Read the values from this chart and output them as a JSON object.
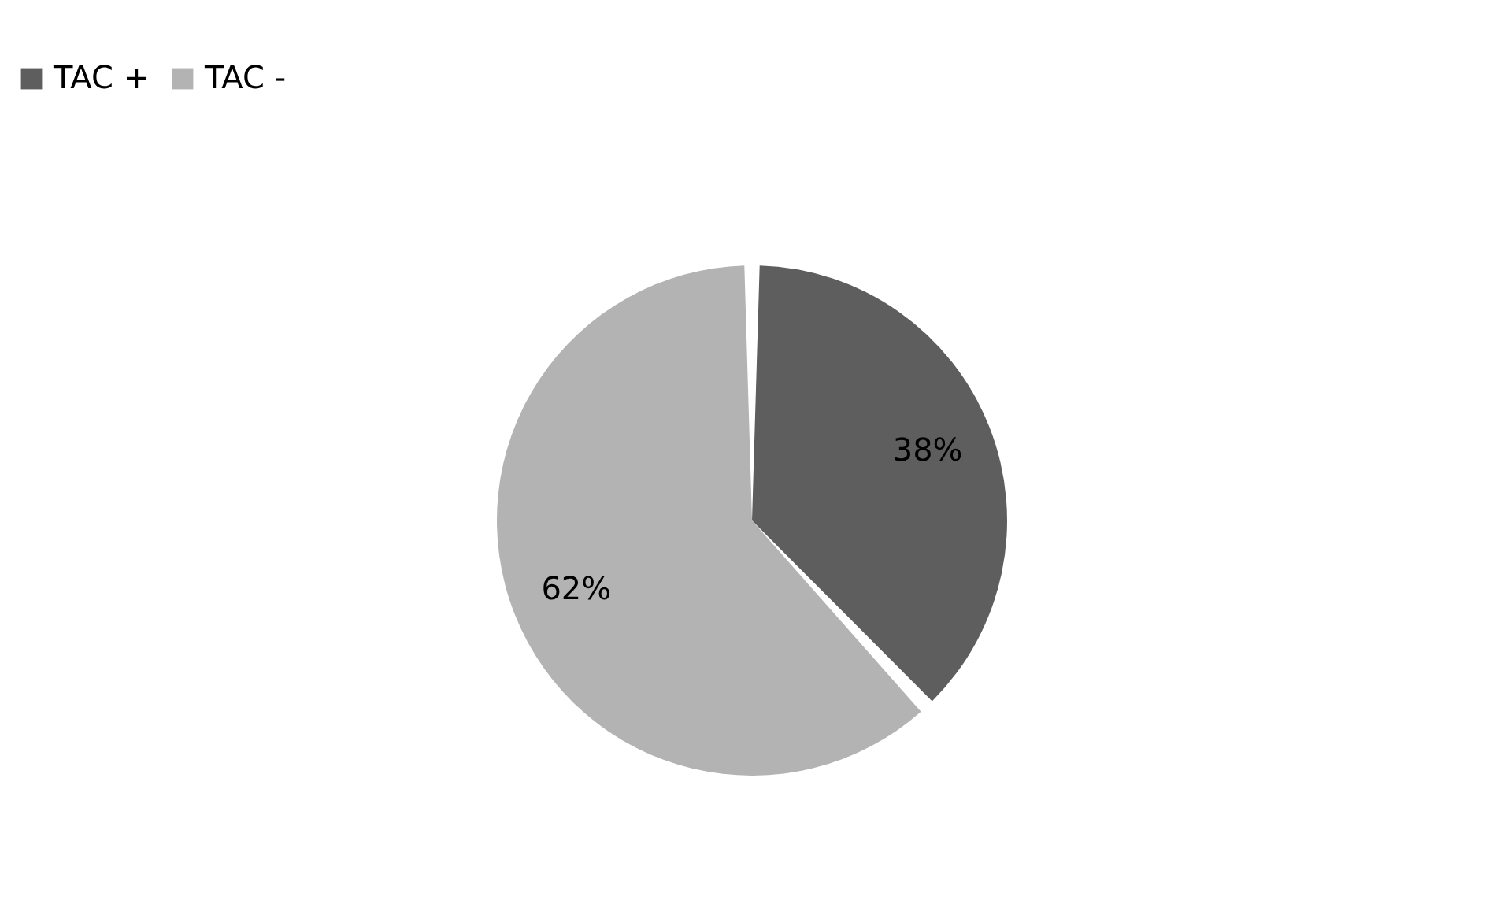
{
  "chart_data": {
    "type": "pie",
    "categories": [
      "TAC +",
      "TAC -"
    ],
    "values": [
      38,
      62
    ],
    "colors": [
      "#5e5e5e",
      "#b3b3b3"
    ],
    "value_labels": [
      "38%",
      "62%"
    ],
    "legend": "top"
  }
}
